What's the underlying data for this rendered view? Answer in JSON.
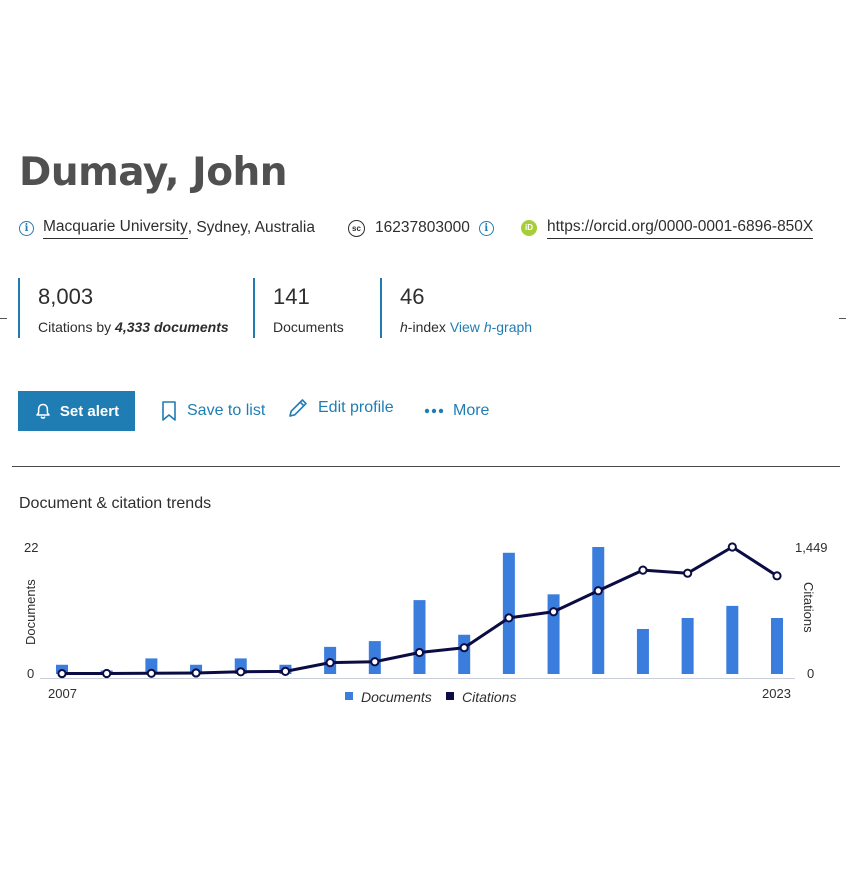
{
  "profile": {
    "name": "Dumay, John",
    "affiliation_link": "Macquarie University",
    "affiliation_rest": ", Sydney, Australia",
    "scopus_id": "16237803000",
    "orcid_url": "https://orcid.org/0000-0001-6896-850X",
    "icons": {
      "info": "info-icon",
      "scopus": "sc",
      "orcid": "iD"
    }
  },
  "metrics": {
    "citations": {
      "value": "8,003",
      "label_prefix": "Citations by ",
      "label_emph": "4,333 documents"
    },
    "documents": {
      "value": "141",
      "label": "Documents"
    },
    "hindex": {
      "value": "46",
      "label_emph": "h",
      "label_rest": "-index ",
      "link_prefix": "View ",
      "link_emph": "h",
      "link_rest": "-graph"
    }
  },
  "actions": {
    "set_alert": "Set alert",
    "save_to_list": "Save to list",
    "edit_profile": "Edit profile",
    "more": "More"
  },
  "colors": {
    "accent": "#1f7db3",
    "bar": "#3b7ddd",
    "line": "#0c0c45"
  },
  "trends": {
    "title": "Document & citation trends"
  },
  "chart_data": {
    "type": "bar",
    "x": [
      2007,
      2008,
      2009,
      2010,
      2011,
      2012,
      2013,
      2014,
      2015,
      2016,
      2017,
      2018,
      2019,
      2020,
      2021,
      2022,
      2023
    ],
    "x_tick_labels": [
      "2007",
      "2023"
    ],
    "series": [
      {
        "name": "Documents",
        "type": "bar",
        "axis": "left",
        "values": [
          1.6,
          0.6,
          2.7,
          1.6,
          2.7,
          1.6,
          4.7,
          5.7,
          12.8,
          6.8,
          21,
          13.8,
          22,
          7.8,
          9.7,
          11.8,
          9.7
        ]
      },
      {
        "name": "Citations",
        "type": "line",
        "axis": "right",
        "values": [
          5,
          6,
          8,
          12,
          25,
          30,
          130,
          140,
          245,
          300,
          640,
          710,
          950,
          1185,
          1150,
          1449,
          1120
        ]
      }
    ],
    "y_left": {
      "label": "Documents",
      "min": 0,
      "max": 22,
      "tick_labels": [
        "0",
        "22"
      ]
    },
    "y_right": {
      "label": "Citations",
      "min": 0,
      "max": 1449,
      "tick_labels": [
        "0",
        "1,449"
      ]
    },
    "legend": {
      "position": "bottom-center"
    },
    "grid": false
  }
}
